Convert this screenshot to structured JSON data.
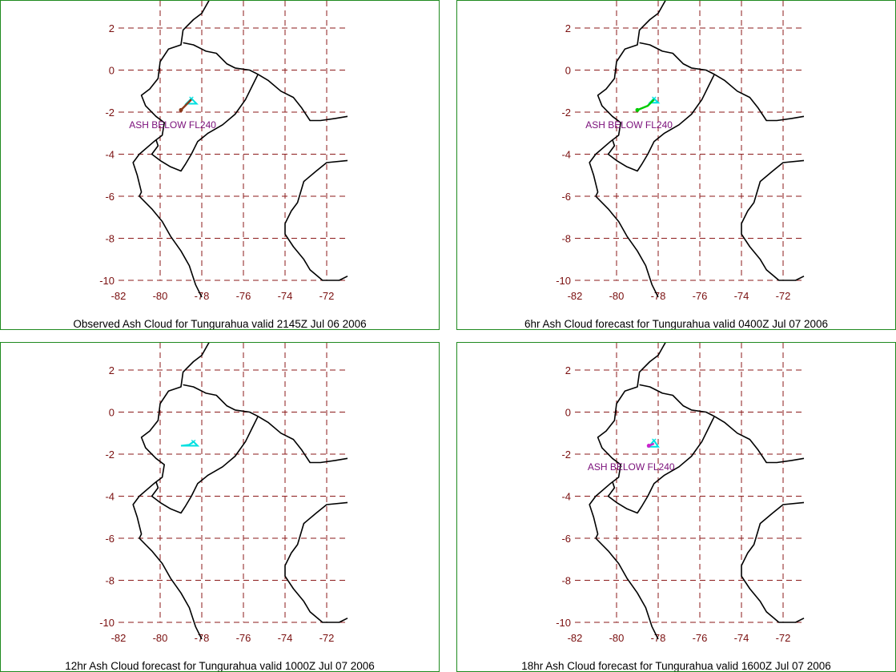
{
  "colors": {
    "border": "#1f8a1f",
    "grid": "#8b1a1a",
    "tick_text": "#7a0f0f",
    "coast": "#000000",
    "ash_label": "#7a0f7a"
  },
  "axes": {
    "xlim": [
      -82,
      -71
    ],
    "ylim": [
      -10,
      3
    ],
    "xticks": [
      -82,
      -80,
      -78,
      -76,
      -74,
      -72
    ],
    "yticks": [
      2,
      0,
      -2,
      -4,
      -6,
      -8,
      -10
    ],
    "xtick_labels": [
      "-82",
      "-80",
      "-78",
      "-76",
      "-74",
      "-72"
    ],
    "ytick_labels": [
      "2",
      "0",
      "-2",
      "-4",
      "-6",
      "-8",
      "-10"
    ],
    "grid": true
  },
  "panels": [
    {
      "caption": "Observed Ash Cloud for Tungurahua valid 2145Z Jul 06 2006",
      "ash_label": "ASH BELOW FL240",
      "ash_label_position": [
        -79.4,
        -2.6
      ],
      "plume": {
        "color": "#00e0e0",
        "points": [
          [
            -78.5,
            -1.35
          ],
          [
            -78.25,
            -1.6
          ],
          [
            -78.75,
            -1.6
          ]
        ]
      },
      "track": {
        "color": "#8b3a1a",
        "points": [
          [
            -78.5,
            -1.4
          ],
          [
            -79.0,
            -1.9
          ]
        ]
      }
    },
    {
      "caption": "6hr Ash Cloud forecast for Tungurahua valid 0400Z Jul 07 2006",
      "ash_label": "ASH BELOW FL240",
      "ash_label_position": [
        -79.4,
        -2.6
      ],
      "plume": {
        "color": "#00e0e0",
        "points": [
          [
            -78.2,
            -1.35
          ],
          [
            -78.0,
            -1.55
          ],
          [
            -78.4,
            -1.55
          ]
        ]
      },
      "track": {
        "color": "#00cc00",
        "points": [
          [
            -78.2,
            -1.4
          ],
          [
            -78.5,
            -1.7
          ],
          [
            -79.0,
            -1.9
          ]
        ]
      }
    },
    {
      "caption": "12hr Ash Cloud forecast for Tungurahua valid 1000Z Jul 07 2006",
      "ash_label": "",
      "ash_label_position": [
        -79.4,
        -2.6
      ],
      "plume": {
        "color": "#00e0e0",
        "points": [
          [
            -78.4,
            -1.4
          ],
          [
            -78.2,
            -1.6
          ],
          [
            -79.0,
            -1.6
          ],
          [
            -78.6,
            -1.55
          ]
        ]
      },
      "track": {
        "color": "#00e0e0",
        "points": []
      }
    },
    {
      "caption": "18hr Ash Cloud forecast for Tungurahua valid 1600Z Jul 07 2006",
      "ash_label": "ASH BELOW FL240",
      "ash_label_position": [
        -79.3,
        -2.6
      ],
      "plume": {
        "color": "#00e0e0",
        "points": [
          [
            -78.2,
            -1.35
          ],
          [
            -78.0,
            -1.65
          ],
          [
            -78.45,
            -1.65
          ]
        ]
      },
      "track": {
        "color": "#cc22cc",
        "points": [
          [
            -78.2,
            -1.5
          ],
          [
            -78.45,
            -1.6
          ]
        ]
      }
    }
  ]
}
